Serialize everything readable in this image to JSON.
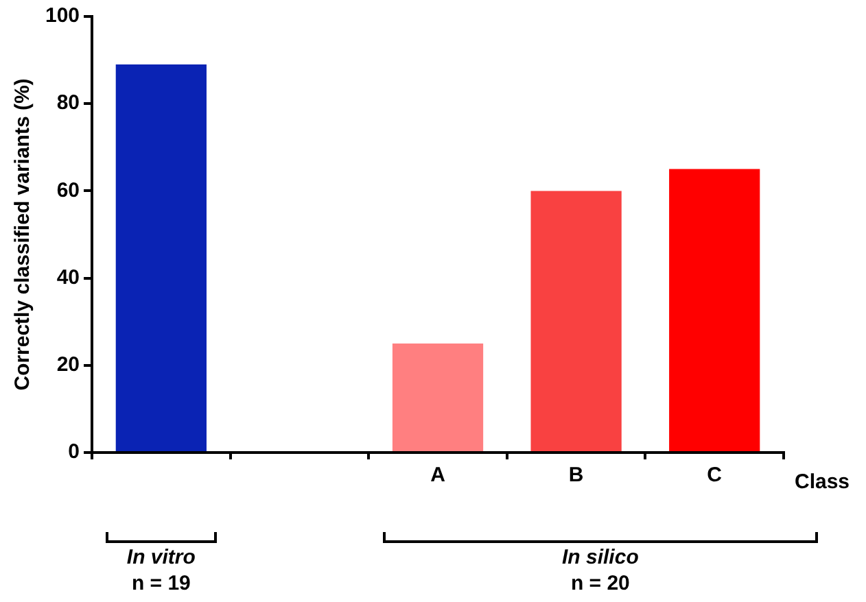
{
  "chart_data": {
    "type": "bar",
    "ylabel": "Correctly classified variants (%)",
    "xlabel": "Class",
    "categories": [
      null,
      null,
      "A",
      "B",
      "C"
    ],
    "values": [
      89,
      null,
      25,
      60,
      65
    ],
    "colors": [
      "#0a23b4",
      "#ffffff",
      "#ff7f80",
      "#f94141",
      "#ff0000"
    ],
    "ylim": [
      0,
      100
    ],
    "yticks": [
      0,
      20,
      40,
      60,
      80,
      100
    ],
    "grid": false,
    "legend": false,
    "annotations": [
      "In vitro",
      "n = 19",
      "In silico",
      "n = 20"
    ]
  }
}
